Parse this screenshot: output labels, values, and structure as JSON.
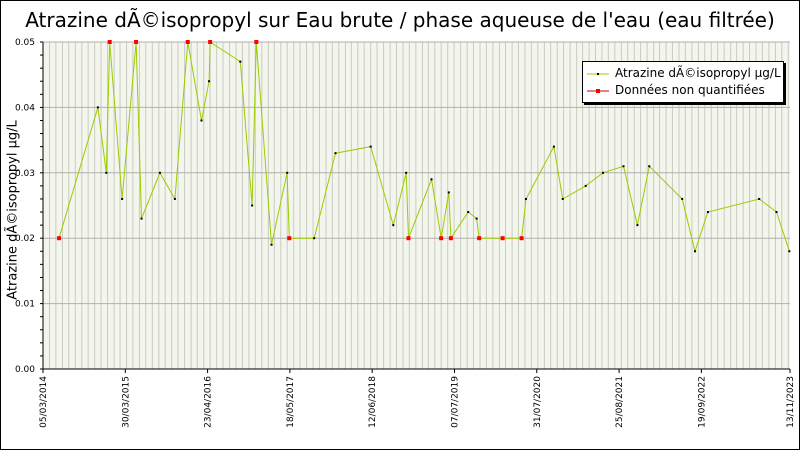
{
  "chart_data": {
    "type": "line",
    "title": "Atrazine dÃ©isopropyl sur Eau brute / phase aqueuse de l'eau (eau filtrée)",
    "ylabel": "Atrazine dÃ©isopropyl µg/L",
    "xlabel": "",
    "ylim": [
      0,
      0.05
    ],
    "xlim": [
      "2014-03-05",
      "2023-11-13"
    ],
    "y_ticks": [
      "0.00",
      "0.01",
      "0.02",
      "0.03",
      "0.04",
      "0.05"
    ],
    "x_ticks": [
      {
        "date": "2014-03-05",
        "label": "05/03/2014"
      },
      {
        "date": "2015-03-30",
        "label": "30/03/2015"
      },
      {
        "date": "2016-04-23",
        "label": "23/04/2016"
      },
      {
        "date": "2017-05-18",
        "label": "18/05/2017"
      },
      {
        "date": "2018-06-12",
        "label": "12/06/2018"
      },
      {
        "date": "2019-07-07",
        "label": "07/07/2019"
      },
      {
        "date": "2020-07-31",
        "label": "31/07/2020"
      },
      {
        "date": "2021-08-25",
        "label": "25/08/2021"
      },
      {
        "date": "2022-09-19",
        "label": "19/09/2022"
      },
      {
        "date": "2023-11-13",
        "label": "13/11/2023"
      }
    ],
    "grid": true,
    "legend_position": "top-right",
    "series": [
      {
        "name": "Atrazine dÃ©isopropyl µg/L",
        "line_color": "#99cc00",
        "marker_color": "#000000",
        "points": [
          {
            "x": "2014-05-20",
            "y": 0.02,
            "nq": true
          },
          {
            "x": "2014-11-20",
            "y": 0.04,
            "nq": false
          },
          {
            "x": "2014-12-30",
            "y": 0.03,
            "nq": false
          },
          {
            "x": "2015-01-15",
            "y": 0.05,
            "nq": true
          },
          {
            "x": "2015-03-15",
            "y": 0.026,
            "nq": false
          },
          {
            "x": "2015-05-20",
            "y": 0.05,
            "nq": true
          },
          {
            "x": "2015-06-15",
            "y": 0.023,
            "nq": false
          },
          {
            "x": "2015-09-10",
            "y": 0.03,
            "nq": false
          },
          {
            "x": "2015-11-20",
            "y": 0.026,
            "nq": false
          },
          {
            "x": "2016-01-20",
            "y": 0.05,
            "nq": true
          },
          {
            "x": "2016-03-25",
            "y": 0.038,
            "nq": false
          },
          {
            "x": "2016-04-30",
            "y": 0.044,
            "nq": false
          },
          {
            "x": "2016-05-05",
            "y": 0.05,
            "nq": true
          },
          {
            "x": "2016-09-25",
            "y": 0.047,
            "nq": false
          },
          {
            "x": "2016-11-20",
            "y": 0.025,
            "nq": false
          },
          {
            "x": "2016-12-10",
            "y": 0.05,
            "nq": true
          },
          {
            "x": "2017-02-20",
            "y": 0.019,
            "nq": false
          },
          {
            "x": "2017-05-05",
            "y": 0.03,
            "nq": false
          },
          {
            "x": "2017-05-15",
            "y": 0.02,
            "nq": true
          },
          {
            "x": "2017-09-10",
            "y": 0.02,
            "nq": false
          },
          {
            "x": "2017-12-20",
            "y": 0.033,
            "nq": false
          },
          {
            "x": "2018-06-05",
            "y": 0.034,
            "nq": false
          },
          {
            "x": "2018-09-20",
            "y": 0.022,
            "nq": false
          },
          {
            "x": "2018-11-20",
            "y": 0.03,
            "nq": false
          },
          {
            "x": "2018-12-01",
            "y": 0.02,
            "nq": true
          },
          {
            "x": "2019-03-20",
            "y": 0.029,
            "nq": false
          },
          {
            "x": "2019-05-05",
            "y": 0.02,
            "nq": true
          },
          {
            "x": "2019-06-10",
            "y": 0.027,
            "nq": false
          },
          {
            "x": "2019-06-20",
            "y": 0.02,
            "nq": true
          },
          {
            "x": "2019-09-10",
            "y": 0.024,
            "nq": false
          },
          {
            "x": "2019-10-20",
            "y": 0.023,
            "nq": false
          },
          {
            "x": "2019-11-01",
            "y": 0.02,
            "nq": true
          },
          {
            "x": "2020-02-20",
            "y": 0.02,
            "nq": true
          },
          {
            "x": "2020-05-20",
            "y": 0.02,
            "nq": true
          },
          {
            "x": "2020-06-10",
            "y": 0.026,
            "nq": false
          },
          {
            "x": "2020-10-20",
            "y": 0.034,
            "nq": false
          },
          {
            "x": "2020-12-01",
            "y": 0.026,
            "nq": false
          },
          {
            "x": "2021-03-20",
            "y": 0.028,
            "nq": false
          },
          {
            "x": "2021-06-10",
            "y": 0.03,
            "nq": false
          },
          {
            "x": "2021-09-15",
            "y": 0.031,
            "nq": false
          },
          {
            "x": "2021-11-20",
            "y": 0.022,
            "nq": false
          },
          {
            "x": "2022-01-15",
            "y": 0.031,
            "nq": false
          },
          {
            "x": "2022-06-20",
            "y": 0.026,
            "nq": false
          },
          {
            "x": "2022-08-20",
            "y": 0.018,
            "nq": false
          },
          {
            "x": "2022-10-20",
            "y": 0.024,
            "nq": false
          },
          {
            "x": "2023-06-20",
            "y": 0.026,
            "nq": false
          },
          {
            "x": "2023-09-10",
            "y": 0.024,
            "nq": false
          },
          {
            "x": "2023-11-10",
            "y": 0.018,
            "nq": false
          }
        ]
      }
    ],
    "legend": [
      {
        "label": "Atrazine dÃ©isopropyl µg/L",
        "line_color": "#99cc00",
        "marker_color": "#000000"
      },
      {
        "label": "Données non quantifiées",
        "line_color": "#cc0000",
        "marker_color": "#ff0000"
      }
    ]
  }
}
